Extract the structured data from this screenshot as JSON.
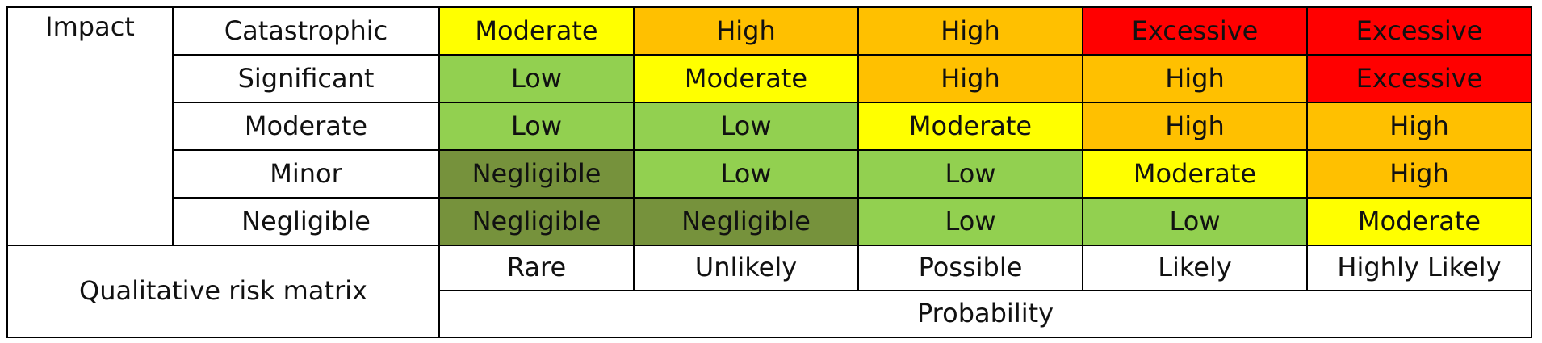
{
  "colors": {
    "negligible": "#76923c",
    "low": "#92d050",
    "moderate": "#ffff00",
    "high": "#ffc000",
    "excessive": "#ff0000",
    "border": "#000000",
    "text": "#111111"
  },
  "matrix": {
    "impact_label": "Impact",
    "corner_label": "Qualitative risk matrix",
    "probability_label": "Probability",
    "probabilities": [
      "Rare",
      "Unlikely",
      "Possible",
      "Likely",
      "Highly Likely"
    ],
    "rows": [
      {
        "impact": "Catastrophic",
        "cells": [
          "Moderate",
          "High",
          "High",
          "Excessive",
          "Excessive"
        ]
      },
      {
        "impact": "Significant",
        "cells": [
          "Low",
          "Moderate",
          "High",
          "High",
          "Excessive"
        ]
      },
      {
        "impact": "Moderate",
        "cells": [
          "Low",
          "Low",
          "Moderate",
          "High",
          "High"
        ]
      },
      {
        "impact": "Minor",
        "cells": [
          "Negligible",
          "Low",
          "Low",
          "Moderate",
          "High"
        ]
      },
      {
        "impact": "Negligible",
        "cells": [
          "Negligible",
          "Negligible",
          "Low",
          "Low",
          "Moderate"
        ]
      }
    ]
  }
}
